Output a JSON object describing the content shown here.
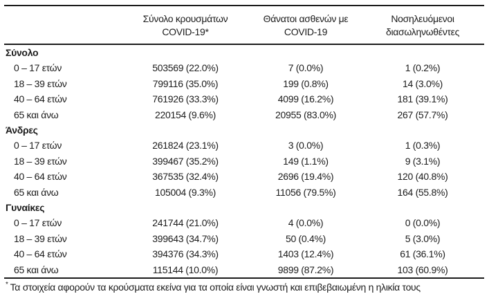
{
  "colors": {
    "text": "#1b1b1b",
    "rule": "#1a1a1a",
    "background": "#ffffff"
  },
  "table": {
    "headers": [
      {
        "line1": "Σύνολο κρουσμάτων",
        "line2": "COVID-19*"
      },
      {
        "line1": "Θάνατοι ασθενών με",
        "line2": "COVID-19"
      },
      {
        "line1": "Νοσηλευόμενοι",
        "line2": "διασωληνωθέντες"
      }
    ],
    "sections": [
      {
        "label": "Σύνολο",
        "rows": [
          {
            "label": "0 – 17 ετών",
            "cases": "503569 (22.0%)",
            "deaths": "7 (0.0%)",
            "intubated": "1 (0.2%)"
          },
          {
            "label": "18 – 39 ετών",
            "cases": "799116 (35.0%)",
            "deaths": "199 (0.8%)",
            "intubated": "14 (3.0%)"
          },
          {
            "label": "40 – 64 ετών",
            "cases": "761926 (33.3%)",
            "deaths": "4099 (16.2%)",
            "intubated": "181 (39.1%)"
          },
          {
            "label": "65 και άνω",
            "cases": "220154 (9.6%)",
            "deaths": "20955 (83.0%)",
            "intubated": "267 (57.7%)"
          }
        ]
      },
      {
        "label": "Άνδρες",
        "rows": [
          {
            "label": "0 – 17 ετών",
            "cases": "261824 (23.1%)",
            "deaths": "3 (0.0%)",
            "intubated": "1 (0.3%)"
          },
          {
            "label": "18 – 39 ετών",
            "cases": "399467 (35.2%)",
            "deaths": "149 (1.1%)",
            "intubated": "9 (3.1%)"
          },
          {
            "label": "40 – 64 ετών",
            "cases": "367535 (32.4%)",
            "deaths": "2696 (19.4%)",
            "intubated": "120 (40.8%)"
          },
          {
            "label": "65 και άνω",
            "cases": "105004 (9.3%)",
            "deaths": "11056 (79.5%)",
            "intubated": "164 (55.8%)"
          }
        ]
      },
      {
        "label": "Γυναίκες",
        "rows": [
          {
            "label": "0 – 17 ετών",
            "cases": "241744 (21.0%)",
            "deaths": "4 (0.0%)",
            "intubated": "0 (0.0%)"
          },
          {
            "label": "18 – 39 ετών",
            "cases": "399643 (34.7%)",
            "deaths": "50 (0.4%)",
            "intubated": "5 (3.0%)"
          },
          {
            "label": "40 – 64 ετών",
            "cases": "394376 (34.3%)",
            "deaths": "1403 (12.4%)",
            "intubated": "61 (36.1%)"
          },
          {
            "label": "65 και άνω",
            "cases": "115144 (10.0%)",
            "deaths": "9899 (87.2%)",
            "intubated": "103 (60.9%)"
          }
        ]
      }
    ],
    "footnote": {
      "marker": "*",
      "text": "Τα στοιχεία αφορούν τα κρούσματα εκείνα για τα οποία είναι γνωστή και επιβεβαιωμένη η ηλικία τους"
    }
  }
}
